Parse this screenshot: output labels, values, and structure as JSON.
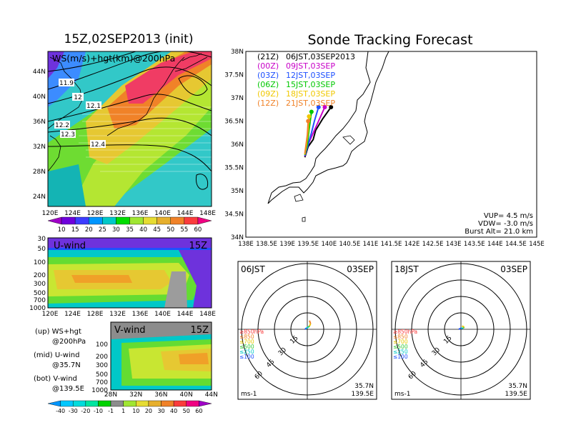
{
  "left": {
    "title": "15Z,02SEP2013 (init)",
    "map": {
      "label": "WS(m/s)+hgt(km)@200hPa",
      "lat_labels": [
        "44N",
        "40N",
        "36N",
        "32N",
        "28N",
        "24N"
      ],
      "lon_labels": [
        "120E",
        "124E",
        "128E",
        "132E",
        "136E",
        "140E",
        "144E",
        "148E"
      ],
      "contour_labels": [
        "11.9",
        "12",
        "12.1",
        "12.2",
        "12.3",
        "12.4"
      ]
    },
    "ws_colorbar": {
      "labels": [
        "10",
        "15",
        "20",
        "25",
        "30",
        "35",
        "40",
        "45",
        "50",
        "55",
        "60"
      ],
      "colors": [
        "#a000c8",
        "#6e00dc",
        "#3c3cff",
        "#0096ff",
        "#00c8c8",
        "#00dc00",
        "#a0e632",
        "#e6dc32",
        "#e6af2d",
        "#f08228",
        "#fa3c3c",
        "#f00082"
      ]
    },
    "uwind": {
      "label": "U-wind",
      "time": "15Z",
      "y_labels": [
        "30",
        "50",
        "100",
        "200",
        "300",
        "500",
        "700",
        "1000"
      ],
      "x_labels": [
        "120E",
        "124E",
        "128E",
        "132E",
        "136E",
        "140E",
        "144E",
        "148E"
      ]
    },
    "vwind": {
      "label": "V-wind",
      "time": "15Z",
      "y_labels": [
        "100",
        "200",
        "300",
        "500",
        "700",
        "1000"
      ],
      "x_labels": [
        "28N",
        "32N",
        "36N",
        "40N",
        "44N"
      ]
    },
    "legend": [
      {
        "a": "(up) WS+hgt",
        "b": "@200hPa"
      },
      {
        "a": "(mid) U-wind",
        "b": "@35.7N"
      },
      {
        "a": "(bot) V-wind",
        "b": "@139.5E"
      }
    ],
    "wind_colorbar": {
      "labels": [
        "-40",
        "-30",
        "-20",
        "-10",
        "-1",
        "1",
        "10",
        "20",
        "30",
        "40",
        "50",
        "60"
      ],
      "colors": [
        "#0096ff",
        "#00c8ff",
        "#00dcdc",
        "#00e6a0",
        "#00d200",
        "#8c8c8c",
        "#a0e632",
        "#e6dc32",
        "#e6af2d",
        "#f08228",
        "#fa3c3c",
        "#f00082",
        "#a000c8"
      ]
    }
  },
  "right": {
    "title": "Sonde Tracking Forecast",
    "legend": [
      {
        "tag": "(21Z)",
        "text": "06JST,03SEP2013",
        "color": "#000000"
      },
      {
        "tag": "(00Z)",
        "text": "09JST,03SEP",
        "color": "#c800c8"
      },
      {
        "tag": "(03Z)",
        "text": "12JST,03SEP",
        "color": "#1e50ff"
      },
      {
        "tag": "(06Z)",
        "text": "15JST,03SEP",
        "color": "#00c800"
      },
      {
        "tag": "(09Z)",
        "text": "18JST,03SEP",
        "color": "#f0c800"
      },
      {
        "tag": "(12Z)",
        "text": "21JST,03SEP",
        "color": "#f08228"
      }
    ],
    "lat_labels": [
      "38N",
      "37.5N",
      "37N",
      "36.5N",
      "36N",
      "35.5N",
      "35N",
      "34.5N",
      "34N"
    ],
    "lon_labels": [
      "138E",
      "138.5E",
      "139E",
      "139.5E",
      "140E",
      "140.5E",
      "141E",
      "141.5E",
      "142E",
      "142.5E",
      "143E",
      "143.5E",
      "144E",
      "144.5E",
      "145E"
    ],
    "params": [
      "VUP= 4.5 m/s",
      "VDW= -3.0 m/s",
      "Burst Alt= 21.0 km"
    ],
    "hodographs": [
      {
        "time": "06JST",
        "date": "03SEP",
        "lat": "35.7N",
        "lon": "139.5E",
        "unit": "ms-1",
        "ring_labels": [
          "15",
          "30",
          "45",
          "60"
        ],
        "levels": [
          {
            "label": "≥850hPa",
            "color": "#fa3c3c"
          },
          {
            "label": "≤850",
            "color": "#f08228"
          },
          {
            "label": "≤700",
            "color": "#e6c800"
          },
          {
            "label": "≤500",
            "color": "#32c832"
          },
          {
            "label": "≤250",
            "color": "#00c8c8"
          },
          {
            "label": "≤100",
            "color": "#1e50ff"
          }
        ]
      },
      {
        "time": "18JST",
        "date": "03SEP",
        "lat": "35.7N",
        "lon": "139.5E",
        "unit": "ms-1",
        "ring_labels": [
          "15",
          "30",
          "45",
          "60"
        ],
        "levels": [
          {
            "label": "≥850hPa",
            "color": "#fa3c3c"
          },
          {
            "label": "≤850",
            "color": "#f08228"
          },
          {
            "label": "≤700",
            "color": "#e6c800"
          },
          {
            "label": "≤500",
            "color": "#32c832"
          },
          {
            "label": "≤250",
            "color": "#00c8c8"
          },
          {
            "label": "≤100",
            "color": "#1e50ff"
          }
        ]
      }
    ]
  },
  "chart_data": [
    {
      "type": "heatmap",
      "title": "15Z,02SEP2013 (init)",
      "label": "WS(m/s)+hgt(km)@200hPa",
      "xlim": [
        120,
        150
      ],
      "ylim": [
        22,
        48
      ],
      "contours": [
        {
          "label": "11.9",
          "value": 11.9
        },
        {
          "label": "12",
          "value": 12.0
        },
        {
          "label": "12.1",
          "value": 12.1
        },
        {
          "label": "12.2",
          "value": 12.2
        },
        {
          "label": "12.3",
          "value": 12.3
        },
        {
          "label": "12.4",
          "value": 12.4
        }
      ]
    },
    {
      "type": "heatmap",
      "label": "U-wind",
      "time": "15Z",
      "xlim": [
        120,
        150
      ],
      "ylim_hPa": [
        30,
        1000
      ]
    },
    {
      "type": "heatmap",
      "label": "V-wind",
      "time": "15Z",
      "xlim": [
        26,
        44
      ],
      "ylim_hPa": [
        100,
        1000
      ]
    },
    {
      "type": "line",
      "title": "Sonde Tracking Forecast",
      "xlim": [
        138,
        145
      ],
      "ylim": [
        34,
        38
      ],
      "series": [
        {
          "name": "06JST,03SEP2013",
          "color": "#000000",
          "points": [
            [
              139.42,
              35.72
            ],
            [
              139.5,
              35.95
            ],
            [
              139.62,
              36.1
            ],
            [
              139.68,
              36.3
            ],
            [
              139.85,
              36.55
            ],
            [
              140.05,
              36.8
            ]
          ]
        },
        {
          "name": "09JST,03SEP",
          "color": "#c800c8",
          "points": [
            [
              139.42,
              35.74
            ],
            [
              139.5,
              36.0
            ],
            [
              139.6,
              36.2
            ],
            [
              139.75,
              36.5
            ],
            [
              139.9,
              36.8
            ]
          ]
        },
        {
          "name": "12JST,03SEP",
          "color": "#1e50ff",
          "points": [
            [
              139.42,
              35.75
            ],
            [
              139.5,
              36.0
            ],
            [
              139.58,
              36.25
            ],
            [
              139.65,
              36.5
            ],
            [
              139.75,
              36.8
            ]
          ]
        },
        {
          "name": "15JST,03SEP",
          "color": "#00c800",
          "points": [
            [
              139.42,
              35.77
            ],
            [
              139.48,
              36.0
            ],
            [
              139.52,
              36.3
            ],
            [
              139.58,
              36.7
            ]
          ]
        },
        {
          "name": "18JST,03SEP",
          "color": "#f0c800",
          "points": [
            [
              139.42,
              35.78
            ],
            [
              139.46,
              36.0
            ],
            [
              139.5,
              36.3
            ],
            [
              139.52,
              36.6
            ]
          ]
        },
        {
          "name": "21JST,03SEP",
          "color": "#f08228",
          "points": [
            [
              139.42,
              35.8
            ],
            [
              139.45,
              36.0
            ],
            [
              139.48,
              36.2
            ],
            [
              139.5,
              36.5
            ]
          ]
        }
      ]
    },
    {
      "type": "scatter",
      "label": "hodograph 06JST 03SEP",
      "points": [
        [
          -2,
          0
        ],
        [
          -1,
          1
        ],
        [
          1,
          2
        ],
        [
          2,
          3
        ],
        [
          3,
          5
        ],
        [
          2,
          8
        ]
      ]
    },
    {
      "type": "scatter",
      "label": "hodograph 18JST 03SEP",
      "points": [
        [
          -2,
          0
        ],
        [
          0,
          1
        ],
        [
          2,
          1
        ],
        [
          3,
          2
        ],
        [
          1,
          3
        ]
      ]
    }
  ]
}
